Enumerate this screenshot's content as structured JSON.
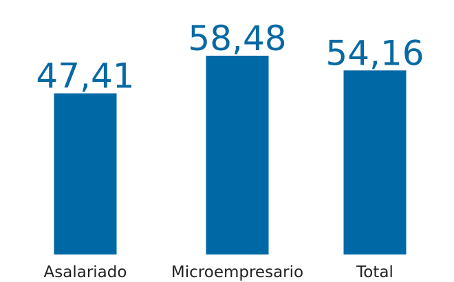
{
  "chart_data": {
    "type": "bar",
    "categories": [
      "Asalariado",
      "Microempresario",
      "Total"
    ],
    "values": [
      47.41,
      58.48,
      54.16
    ],
    "value_labels": [
      "47,41",
      "58,48",
      "54,16"
    ],
    "color": "#0068a5"
  }
}
